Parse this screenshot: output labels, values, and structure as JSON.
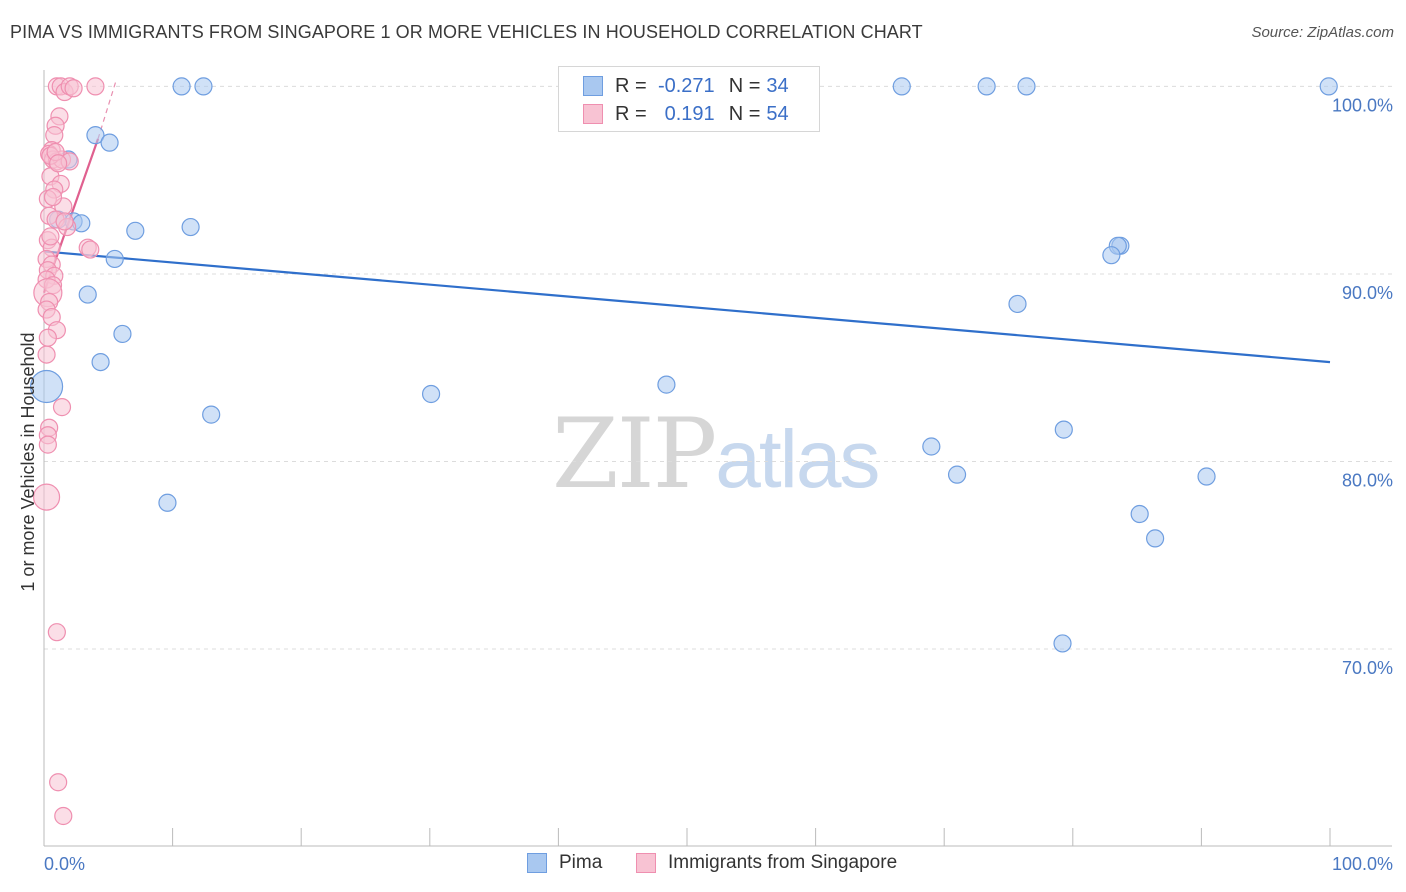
{
  "title": "PIMA VS IMMIGRANTS FROM SINGAPORE 1 OR MORE VEHICLES IN HOUSEHOLD CORRELATION CHART",
  "source": "Source: ZipAtlas.com",
  "watermark": {
    "zip": "ZIP",
    "atlas": "atlas"
  },
  "legend": {
    "rows": [
      {
        "r_label": "R =",
        "r_value": "-0.271",
        "n_label": "N =",
        "n_value": "34",
        "color": "#a9c8f0",
        "border": "#6f9ee0"
      },
      {
        "r_label": "R =",
        "r_value": "0.191",
        "n_label": "N =",
        "n_value": "54",
        "color": "#f8c3d3",
        "border": "#ef8fb0"
      }
    ]
  },
  "bottom_legend": [
    {
      "label": "Pima",
      "color": "#a9c8f0",
      "border": "#6f9ee0"
    },
    {
      "label": "Immigrants from Singapore",
      "color": "#f8c3d3",
      "border": "#ef8fb0"
    }
  ],
  "chart_data": {
    "type": "scatter",
    "title": "PIMA VS IMMIGRANTS FROM SINGAPORE 1 OR MORE VEHICLES IN HOUSEHOLD CORRELATION CHART",
    "xlabel": "",
    "ylabel": "1 or more Vehicles in Household",
    "xlim": [
      0,
      100
    ],
    "ylim": [
      59.5,
      101.3
    ],
    "x_tick_labels": [
      "0.0%",
      "100.0%"
    ],
    "y_ticks": [
      {
        "value": 100,
        "label": "100.0%"
      },
      {
        "value": 90,
        "label": "90.0%"
      },
      {
        "value": 80,
        "label": "80.0%"
      },
      {
        "value": 70,
        "label": "70.0%"
      }
    ],
    "grid": true,
    "series": [
      {
        "name": "Pima",
        "color": "#a9c8f0",
        "stroke": "#6f9ee0",
        "trend": {
          "x1": 0,
          "y1": 91.2,
          "x2": 100,
          "y2": 85.3,
          "color": "#2f6fcb"
        },
        "points": [
          {
            "x": 10.7,
            "y": 100.0
          },
          {
            "x": 12.4,
            "y": 100.0
          },
          {
            "x": 66.7,
            "y": 100.0
          },
          {
            "x": 73.3,
            "y": 100.0
          },
          {
            "x": 76.4,
            "y": 100.0
          },
          {
            "x": 99.9,
            "y": 100.0
          },
          {
            "x": 4.0,
            "y": 97.4
          },
          {
            "x": 5.1,
            "y": 97.0
          },
          {
            "x": 1.9,
            "y": 96.1
          },
          {
            "x": 1.1,
            "y": 92.9
          },
          {
            "x": 2.3,
            "y": 92.8
          },
          {
            "x": 2.9,
            "y": 92.7
          },
          {
            "x": 7.1,
            "y": 92.3
          },
          {
            "x": 11.4,
            "y": 92.5
          },
          {
            "x": 5.5,
            "y": 90.8
          },
          {
            "x": 83.7,
            "y": 91.5
          },
          {
            "x": 83.5,
            "y": 91.5
          },
          {
            "x": 83.0,
            "y": 91.0
          },
          {
            "x": 3.4,
            "y": 88.9
          },
          {
            "x": 75.7,
            "y": 88.4
          },
          {
            "x": 6.1,
            "y": 86.8
          },
          {
            "x": 4.4,
            "y": 85.3
          },
          {
            "x": 0.2,
            "y": 84.0,
            "r": 16
          },
          {
            "x": 48.4,
            "y": 84.1
          },
          {
            "x": 30.1,
            "y": 83.6
          },
          {
            "x": 13.0,
            "y": 82.5
          },
          {
            "x": 79.3,
            "y": 81.7
          },
          {
            "x": 69.0,
            "y": 80.8
          },
          {
            "x": 71.0,
            "y": 79.3
          },
          {
            "x": 90.4,
            "y": 79.2
          },
          {
            "x": 9.6,
            "y": 77.8
          },
          {
            "x": 85.2,
            "y": 77.2
          },
          {
            "x": 86.4,
            "y": 75.9
          },
          {
            "x": 79.2,
            "y": 70.3
          }
        ]
      },
      {
        "name": "Immigrants from Singapore",
        "color": "#f8c3d3",
        "stroke": "#ef8fb0",
        "trend": {
          "x1": 0,
          "y1": 89.0,
          "x2": 4.2,
          "y2": 97.2,
          "color": "#e0608f"
        },
        "trend_dashed": {
          "x1": 4.2,
          "y1": 97.2,
          "x2": 5.6,
          "y2": 100.3,
          "color": "#e890b0"
        },
        "points": [
          {
            "x": 1.0,
            "y": 100.0
          },
          {
            "x": 1.3,
            "y": 100.0
          },
          {
            "x": 1.6,
            "y": 99.7
          },
          {
            "x": 2.0,
            "y": 100.0
          },
          {
            "x": 2.3,
            "y": 99.9
          },
          {
            "x": 4.0,
            "y": 100.0
          },
          {
            "x": 1.2,
            "y": 98.4
          },
          {
            "x": 0.9,
            "y": 97.9
          },
          {
            "x": 0.8,
            "y": 97.4
          },
          {
            "x": 0.6,
            "y": 96.6
          },
          {
            "x": 0.4,
            "y": 96.4
          },
          {
            "x": 0.7,
            "y": 96.1
          },
          {
            "x": 1.0,
            "y": 96.0
          },
          {
            "x": 1.4,
            "y": 96.1
          },
          {
            "x": 2.0,
            "y": 96.0
          },
          {
            "x": 0.5,
            "y": 95.2
          },
          {
            "x": 1.3,
            "y": 94.8
          },
          {
            "x": 0.8,
            "y": 94.5
          },
          {
            "x": 0.3,
            "y": 94.0
          },
          {
            "x": 1.5,
            "y": 93.6
          },
          {
            "x": 0.4,
            "y": 93.1
          },
          {
            "x": 0.9,
            "y": 92.9
          },
          {
            "x": 1.8,
            "y": 92.5
          },
          {
            "x": 0.3,
            "y": 91.8
          },
          {
            "x": 0.6,
            "y": 91.4
          },
          {
            "x": 3.4,
            "y": 91.4
          },
          {
            "x": 3.6,
            "y": 91.3
          },
          {
            "x": 0.2,
            "y": 90.8
          },
          {
            "x": 0.6,
            "y": 90.5
          },
          {
            "x": 0.3,
            "y": 90.2
          },
          {
            "x": 0.8,
            "y": 89.9
          },
          {
            "x": 0.2,
            "y": 89.7
          },
          {
            "x": 0.7,
            "y": 89.4
          },
          {
            "x": 0.3,
            "y": 89.0,
            "r": 14
          },
          {
            "x": 0.4,
            "y": 88.5
          },
          {
            "x": 0.2,
            "y": 88.1
          },
          {
            "x": 0.6,
            "y": 87.7
          },
          {
            "x": 1.0,
            "y": 87.0
          },
          {
            "x": 0.3,
            "y": 86.6
          },
          {
            "x": 0.2,
            "y": 85.7
          },
          {
            "x": 1.4,
            "y": 82.9
          },
          {
            "x": 0.4,
            "y": 81.8
          },
          {
            "x": 0.3,
            "y": 81.4
          },
          {
            "x": 0.3,
            "y": 80.9
          },
          {
            "x": 0.2,
            "y": 78.1,
            "r": 13
          },
          {
            "x": 1.0,
            "y": 70.9
          },
          {
            "x": 1.1,
            "y": 62.9
          },
          {
            "x": 1.5,
            "y": 61.1
          },
          {
            "x": 0.5,
            "y": 96.3
          },
          {
            "x": 0.9,
            "y": 96.5
          },
          {
            "x": 1.1,
            "y": 95.9
          },
          {
            "x": 0.7,
            "y": 94.1
          },
          {
            "x": 1.6,
            "y": 92.8
          },
          {
            "x": 0.5,
            "y": 92.0
          }
        ]
      }
    ]
  }
}
